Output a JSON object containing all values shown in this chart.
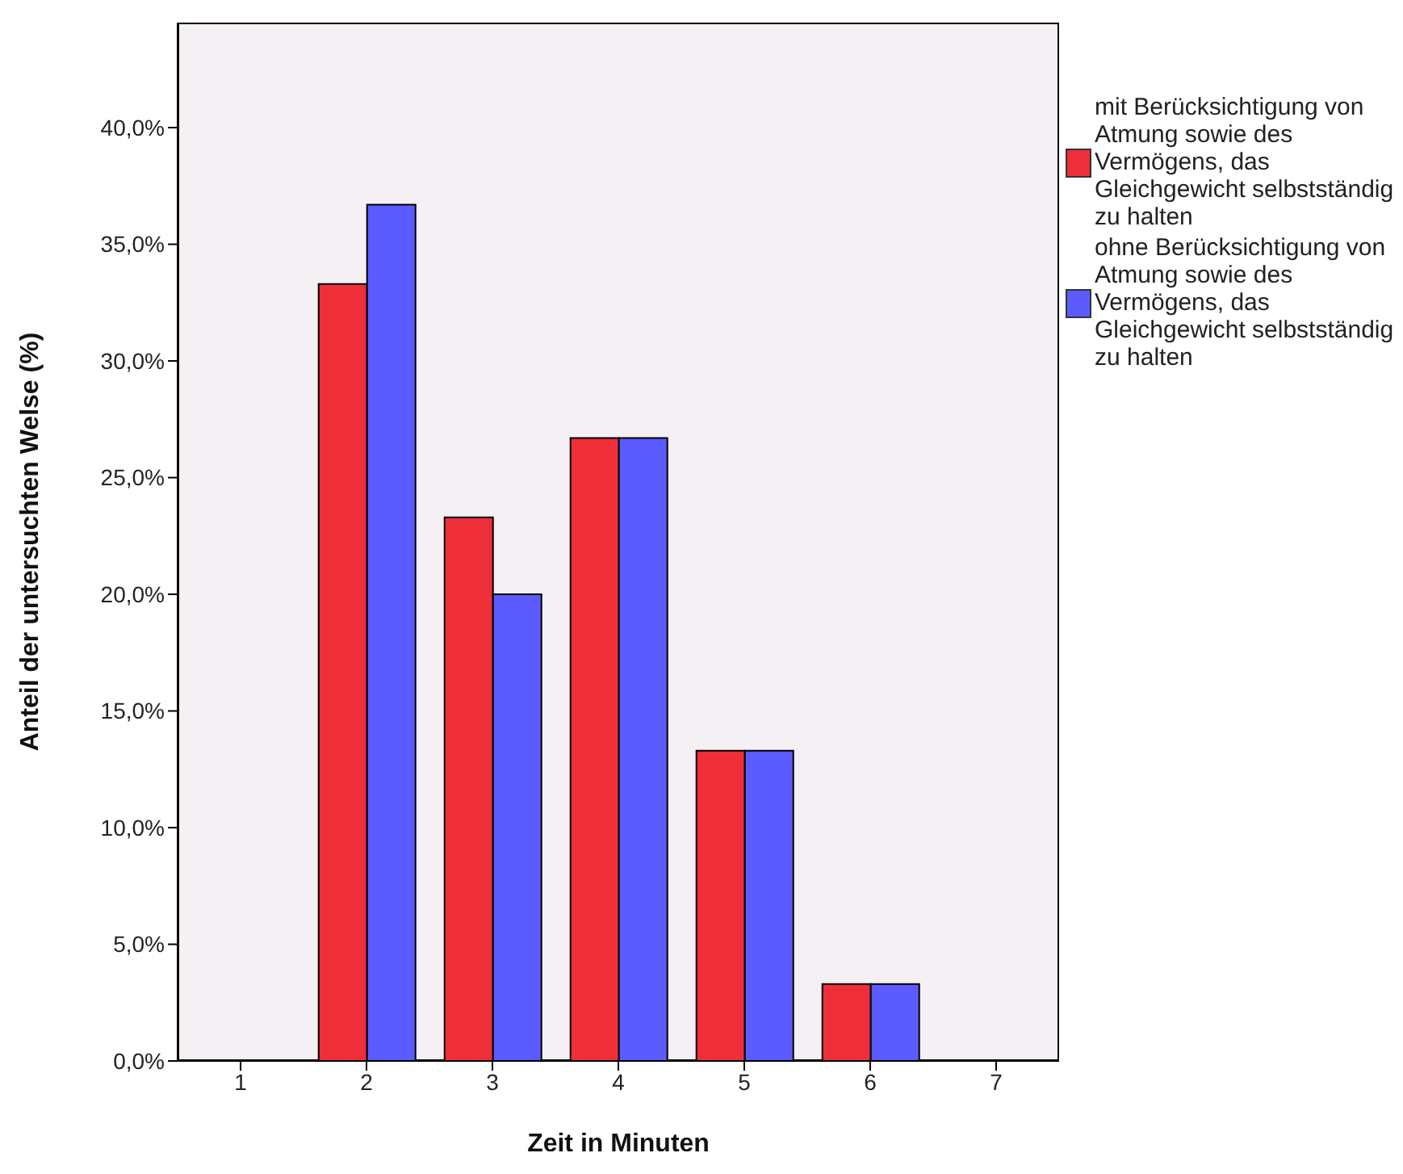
{
  "chart_data": {
    "type": "bar",
    "xlabel": "Zeit in Minuten",
    "ylabel": "Anteil der untersuchten Welse (%)",
    "categories": [
      "1",
      "2",
      "3",
      "4",
      "5",
      "6",
      "7"
    ],
    "series": [
      {
        "name": "mit Berücksichtigung von Atmung sowie des Vermögens, das Gleichgewicht selbstständig zu halten",
        "color": "#ee2f3a",
        "values": [
          0,
          33.3,
          23.3,
          26.7,
          13.3,
          3.3,
          0
        ]
      },
      {
        "name": "ohne Berücksichtigung von Atmung sowie des Vermögens, das Gleichgewicht selbstständig zu halten",
        "color": "#5b5bff",
        "values": [
          0,
          36.7,
          20.0,
          26.7,
          13.3,
          3.3,
          0
        ]
      }
    ],
    "ylim": [
      0,
      44.5
    ],
    "yticks": [
      {
        "value": 0,
        "label": "0,0%"
      },
      {
        "value": 5,
        "label": "5,0%"
      },
      {
        "value": 10,
        "label": "10,0%"
      },
      {
        "value": 15,
        "label": "15,0%"
      },
      {
        "value": 20,
        "label": "20,0%"
      },
      {
        "value": 25,
        "label": "25,0%"
      },
      {
        "value": 30,
        "label": "30,0%"
      },
      {
        "value": 35,
        "label": "35,0%"
      },
      {
        "value": 40,
        "label": "40,0%"
      }
    ],
    "grid": false,
    "legend": "right"
  }
}
